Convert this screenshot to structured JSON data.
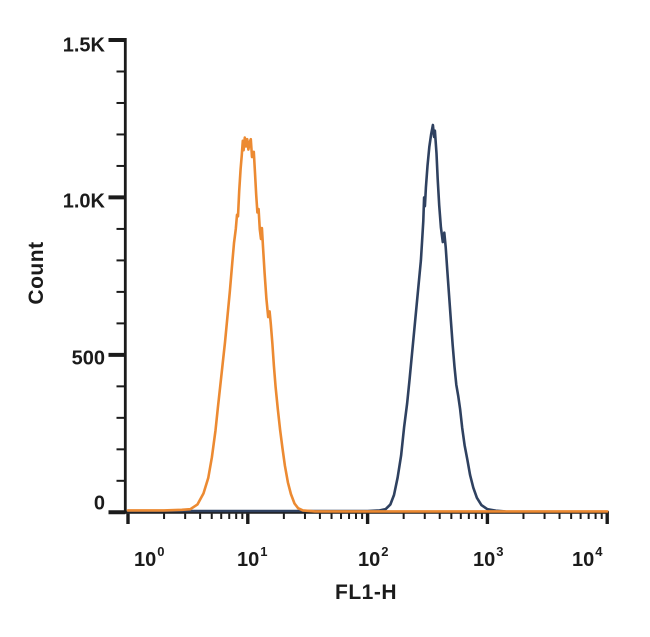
{
  "axes": {
    "axis_color": "#1b1b1b",
    "x": {
      "title": "FL1-H",
      "scale": "log10",
      "ticks": [
        {
          "base": "10",
          "exp": "0"
        },
        {
          "base": "10",
          "exp": "1"
        },
        {
          "base": "10",
          "exp": "2"
        },
        {
          "base": "10",
          "exp": "3"
        },
        {
          "base": "10",
          "exp": "4"
        }
      ]
    },
    "y": {
      "title": "Count",
      "ticks": [
        {
          "label": "1.5K",
          "value": 1500
        },
        {
          "label": "1.0K",
          "value": 1000
        },
        {
          "label": "500",
          "value": 500
        },
        {
          "label": "0",
          "value": 0
        }
      ],
      "minor_values": [
        100,
        200,
        300,
        400,
        600,
        700,
        800,
        900,
        1100,
        1200,
        1300,
        1400
      ],
      "max": 1500
    }
  },
  "chart_data": {
    "type": "line",
    "title": "",
    "xlabel": "FL1-H",
    "ylabel": "Count",
    "x_scale": "log10",
    "xlim_log10": [
      0,
      4
    ],
    "ylim": [
      0,
      1500
    ],
    "grid": false,
    "legend": "none",
    "series": [
      {
        "name": "orange-population",
        "color": "#EC8A32",
        "peak_fl1h": 10,
        "peak_count": 1190,
        "points_log10x_count": [
          [
            0.0,
            6
          ],
          [
            0.3,
            6
          ],
          [
            0.45,
            8
          ],
          [
            0.52,
            10
          ],
          [
            0.58,
            25
          ],
          [
            0.63,
            60
          ],
          [
            0.67,
            110
          ],
          [
            0.7,
            175
          ],
          [
            0.73,
            260
          ],
          [
            0.75,
            330
          ],
          [
            0.77,
            400
          ],
          [
            0.79,
            470
          ],
          [
            0.81,
            540
          ],
          [
            0.83,
            620
          ],
          [
            0.85,
            700
          ],
          [
            0.87,
            790
          ],
          [
            0.885,
            855
          ],
          [
            0.9,
            900
          ],
          [
            0.91,
            945
          ],
          [
            0.918,
            940
          ],
          [
            0.928,
            1020
          ],
          [
            0.94,
            1090
          ],
          [
            0.95,
            1135
          ],
          [
            0.958,
            1180
          ],
          [
            0.965,
            1150
          ],
          [
            0.975,
            1190
          ],
          [
            0.985,
            1162
          ],
          [
            0.995,
            1185
          ],
          [
            1.005,
            1152
          ],
          [
            1.015,
            1175
          ],
          [
            1.025,
            1185
          ],
          [
            1.035,
            1128
          ],
          [
            1.05,
            1145
          ],
          [
            1.06,
            1078
          ],
          [
            1.07,
            1008
          ],
          [
            1.08,
            952
          ],
          [
            1.09,
            963
          ],
          [
            1.1,
            898
          ],
          [
            1.11,
            868
          ],
          [
            1.118,
            903
          ],
          [
            1.128,
            838
          ],
          [
            1.14,
            760
          ],
          [
            1.155,
            678
          ],
          [
            1.17,
            620
          ],
          [
            1.182,
            638
          ],
          [
            1.192,
            598
          ],
          [
            1.205,
            535
          ],
          [
            1.218,
            465
          ],
          [
            1.232,
            398
          ],
          [
            1.25,
            328
          ],
          [
            1.27,
            262
          ],
          [
            1.29,
            203
          ],
          [
            1.31,
            148
          ],
          [
            1.335,
            95
          ],
          [
            1.36,
            58
          ],
          [
            1.39,
            28
          ],
          [
            1.42,
            13
          ],
          [
            1.46,
            6
          ],
          [
            1.56,
            3
          ],
          [
            1.8,
            3
          ],
          [
            2.4,
            3
          ],
          [
            3.0,
            3
          ],
          [
            3.6,
            3
          ],
          [
            4.0,
            3
          ]
        ]
      },
      {
        "name": "navy-population",
        "color": "#2F4160",
        "peak_fl1h": 350,
        "peak_count": 1230,
        "points_log10x_count": [
          [
            0.0,
            4
          ],
          [
            0.6,
            4
          ],
          [
            1.2,
            4
          ],
          [
            1.6,
            4
          ],
          [
            2.0,
            4
          ],
          [
            2.1,
            6
          ],
          [
            2.15,
            10
          ],
          [
            2.19,
            25
          ],
          [
            2.22,
            55
          ],
          [
            2.25,
            110
          ],
          [
            2.28,
            180
          ],
          [
            2.305,
            270
          ],
          [
            2.33,
            345
          ],
          [
            2.35,
            420
          ],
          [
            2.37,
            500
          ],
          [
            2.39,
            580
          ],
          [
            2.41,
            660
          ],
          [
            2.43,
            740
          ],
          [
            2.445,
            800
          ],
          [
            2.455,
            862
          ],
          [
            2.465,
            925
          ],
          [
            2.472,
            1000
          ],
          [
            2.478,
            972
          ],
          [
            2.487,
            1032
          ],
          [
            2.5,
            1100
          ],
          [
            2.515,
            1160
          ],
          [
            2.53,
            1200
          ],
          [
            2.545,
            1230
          ],
          [
            2.555,
            1192
          ],
          [
            2.562,
            1212
          ],
          [
            2.575,
            1140
          ],
          [
            2.585,
            1058
          ],
          [
            2.598,
            975
          ],
          [
            2.612,
            905
          ],
          [
            2.628,
            858
          ],
          [
            2.64,
            888
          ],
          [
            2.652,
            842
          ],
          [
            2.665,
            768
          ],
          [
            2.68,
            688
          ],
          [
            2.695,
            608
          ],
          [
            2.71,
            530
          ],
          [
            2.725,
            462
          ],
          [
            2.74,
            405
          ],
          [
            2.757,
            368
          ],
          [
            2.772,
            328
          ],
          [
            2.79,
            268
          ],
          [
            2.81,
            213
          ],
          [
            2.832,
            168
          ],
          [
            2.856,
            118
          ],
          [
            2.882,
            78
          ],
          [
            2.912,
            46
          ],
          [
            2.95,
            23
          ],
          [
            3.0,
            10
          ],
          [
            3.07,
            5
          ],
          [
            3.147,
            3
          ]
        ]
      }
    ]
  }
}
